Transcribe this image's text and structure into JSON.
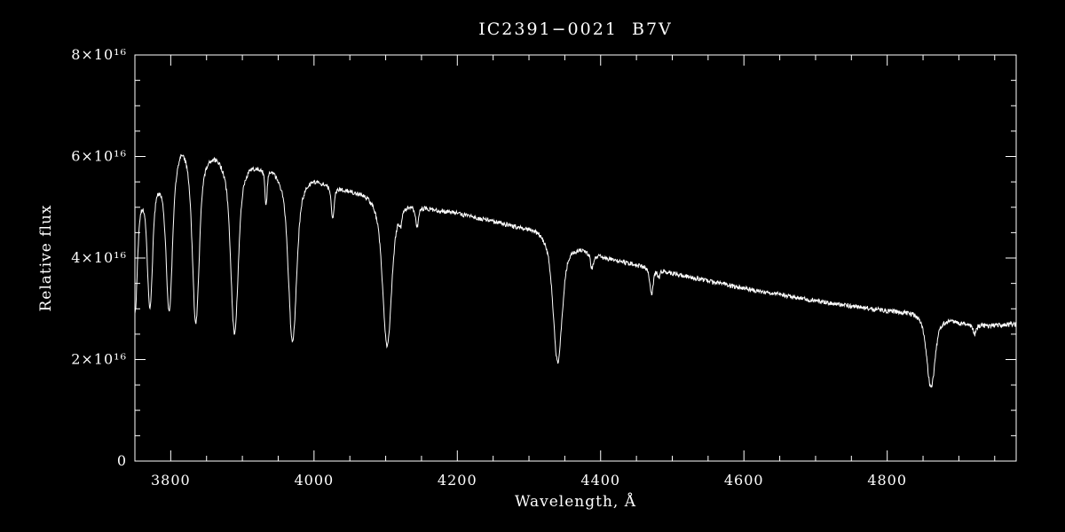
{
  "figure": {
    "background": "#000000",
    "foreground": "#ffffff"
  },
  "chart_data": {
    "type": "line",
    "title": "IC2391−0021  B7V",
    "xlabel": "Wavelength, Å",
    "ylabel": "Relative flux",
    "xlim": [
      3750,
      4980
    ],
    "ylim": [
      0,
      8e+16
    ],
    "grid": false,
    "legend": false,
    "x_ticks": {
      "values": [
        3800,
        4000,
        4200,
        4400,
        4600,
        4800
      ],
      "labels": [
        "3800",
        "4000",
        "4200",
        "4400",
        "4600",
        "4800"
      ],
      "minor_step": 50
    },
    "y_ticks": {
      "values": [
        0,
        2e+16,
        4e+16,
        6e+16,
        8e+16
      ],
      "labels": [
        "0",
        "2×10¹⁶",
        "4×10¹⁶",
        "6×10¹⁶",
        "8×10¹⁶"
      ],
      "minor_step": 5000000000000000.0
    },
    "series": [
      {
        "name": "spectrum",
        "color": "#ffffff",
        "unit_scale": 1e+16,
        "sample_step": 0.6,
        "noise_amplitude": 0.045,
        "continuum": [
          [
            3750,
            5.2
          ],
          [
            3770,
            5.45
          ],
          [
            3790,
            5.6
          ],
          [
            3815,
            6.2
          ],
          [
            3850,
            6.0
          ],
          [
            3880,
            5.9
          ],
          [
            3910,
            5.8
          ],
          [
            3940,
            5.7
          ],
          [
            3970,
            5.6
          ],
          [
            4000,
            5.5
          ],
          [
            4040,
            5.35
          ],
          [
            4080,
            5.2
          ],
          [
            4120,
            5.05
          ],
          [
            4160,
            4.97
          ],
          [
            4200,
            4.88
          ],
          [
            4240,
            4.75
          ],
          [
            4280,
            4.62
          ],
          [
            4320,
            4.5
          ],
          [
            4360,
            4.22
          ],
          [
            4400,
            4.02
          ],
          [
            4450,
            3.86
          ],
          [
            4500,
            3.7
          ],
          [
            4550,
            3.55
          ],
          [
            4600,
            3.4
          ],
          [
            4650,
            3.28
          ],
          [
            4700,
            3.16
          ],
          [
            4750,
            3.05
          ],
          [
            4800,
            2.96
          ],
          [
            4861,
            2.87
          ],
          [
            4900,
            2.72
          ],
          [
            4940,
            2.66
          ],
          [
            4980,
            2.7
          ]
        ],
        "absorption_lines": [
          {
            "center": 3750,
            "depth": 2.3,
            "sigma": 3.0
          },
          {
            "center": 3771,
            "depth": 2.45,
            "sigma": 3.2
          },
          {
            "center": 3798,
            "depth": 2.85,
            "sigma": 3.8
          },
          {
            "center": 3835,
            "depth": 3.35,
            "sigma": 4.2
          },
          {
            "center": 3889,
            "depth": 3.35,
            "sigma": 4.6
          },
          {
            "center": 3933,
            "depth": 0.7,
            "sigma": 1.3
          },
          {
            "center": 3970,
            "depth": 3.25,
            "sigma": 5.0
          },
          {
            "center": 4026,
            "depth": 0.62,
            "sigma": 1.8
          },
          {
            "center": 4102,
            "depth": 2.85,
            "sigma": 5.5
          },
          {
            "center": 4121,
            "depth": 0.22,
            "sigma": 1.5
          },
          {
            "center": 4144,
            "depth": 0.38,
            "sigma": 1.8
          },
          {
            "center": 4340,
            "depth": 2.4,
            "sigma": 5.5
          },
          {
            "center": 4388,
            "depth": 0.28,
            "sigma": 1.8
          },
          {
            "center": 4471,
            "depth": 0.5,
            "sigma": 2.0
          },
          {
            "center": 4481,
            "depth": 0.15,
            "sigma": 1.2
          },
          {
            "center": 4861,
            "depth": 1.42,
            "sigma": 5.0
          },
          {
            "center": 4922,
            "depth": 0.2,
            "sigma": 1.8
          }
        ]
      }
    ]
  }
}
